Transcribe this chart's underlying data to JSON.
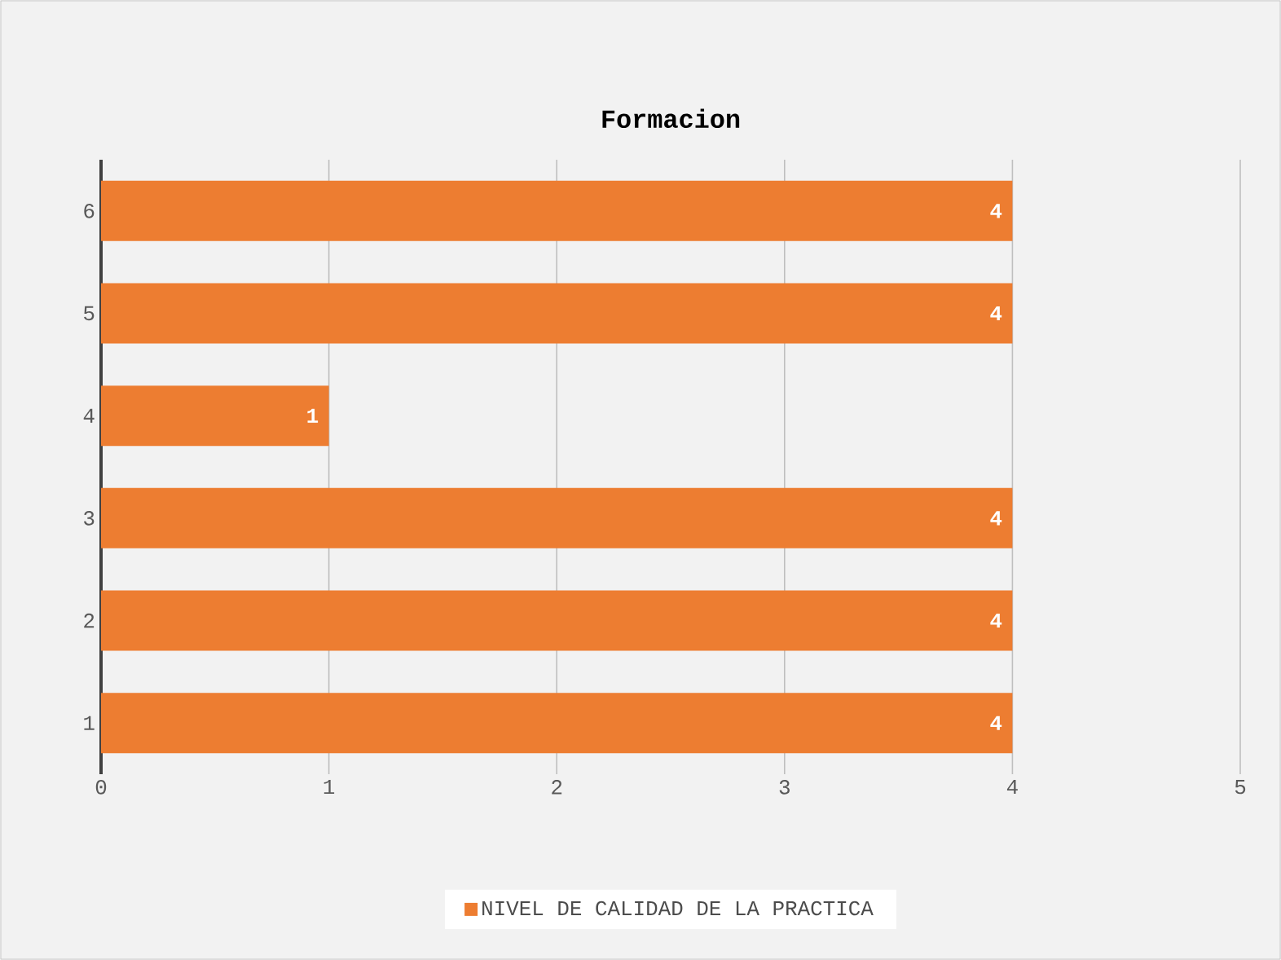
{
  "chart_data": {
    "type": "bar",
    "orientation": "horizontal",
    "title": "Formacion",
    "categories": [
      "6",
      "5",
      "4",
      "3",
      "2",
      "1"
    ],
    "series": [
      {
        "name": "NIVEL DE CALIDAD DE LA PRACTICA",
        "color": "#ed7d31",
        "values": [
          4,
          4,
          1,
          4,
          4,
          4
        ]
      }
    ],
    "xlim": [
      0,
      5
    ],
    "xticks": [
      0,
      1,
      2,
      3,
      4,
      5
    ],
    "grid": "x",
    "legend": "bottom",
    "data_labels": true
  }
}
